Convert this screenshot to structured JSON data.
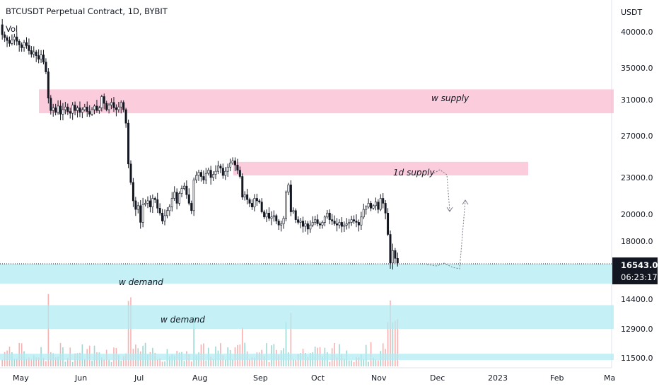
{
  "chart_data": {
    "type": "candlestick",
    "title": "BTCUSDT Perpetual Contract, 1D, BYBIT",
    "indicator_label": "Vol",
    "currency": "USDT",
    "price_ticks": [
      40000,
      35000,
      31000,
      27000,
      23000,
      20000,
      18000,
      14400,
      12900,
      11500
    ],
    "price_tick_labels": [
      "40000.0",
      "35000.0",
      "31000.0",
      "27000.0",
      "23000.0",
      "20000.0",
      "18000.0",
      "14400.0",
      "12900.0",
      "11500.0"
    ],
    "current_price": "16543.0",
    "countdown": "06:23:17",
    "x_labels": [
      "May",
      "Jun",
      "Jul",
      "Aug",
      "Sep",
      "Oct",
      "Nov",
      "Dec",
      "2023",
      "Feb",
      "Ma"
    ],
    "zones": [
      {
        "label": "w supply",
        "from": 29500,
        "to": 32300,
        "color": "#f8bbd0"
      },
      {
        "label": "1d supply",
        "from": 23200,
        "to": 24500,
        "color": "#f8bbd0"
      },
      {
        "label": "w demand",
        "from": 15350,
        "to": 16550,
        "color": "#b2ebf2"
      },
      {
        "label": "w demand",
        "from": 12900,
        "to": 14100,
        "color": "#b2ebf2"
      },
      {
        "label": "",
        "from": 11400,
        "to": 11700,
        "color": "#b2ebf2"
      }
    ],
    "closes": [
      39600,
      39200,
      38800,
      38400,
      38900,
      39300,
      38700,
      38200,
      37800,
      38500,
      38100,
      37400,
      36900,
      37200,
      36700,
      36200,
      36800,
      35800,
      34500,
      31200,
      29800,
      30100,
      29600,
      30300,
      29400,
      29900,
      30200,
      29700,
      29500,
      30400,
      29800,
      30100,
      29600,
      29900,
      30200,
      29700,
      29400,
      29900,
      30300,
      29800,
      30100,
      31400,
      30600,
      29900,
      30400,
      30700,
      30100,
      29900,
      30200,
      30700,
      29900,
      28400,
      24300,
      22600,
      21100,
      20400,
      20700,
      19400,
      20800,
      20900,
      21100,
      20600,
      21300,
      21200,
      20500,
      20100,
      19500,
      19900,
      20300,
      20600,
      21300,
      21800,
      20900,
      21700,
      22100,
      22300,
      21600,
      20900,
      20300,
      22800,
      23200,
      23500,
      23100,
      22800,
      23400,
      23700,
      23000,
      23300,
      23600,
      24100,
      23900,
      23200,
      23600,
      24000,
      24400,
      24600,
      24200,
      23700,
      23100,
      21400,
      21600,
      21200,
      20900,
      20600,
      21300,
      21100,
      21000,
      20200,
      19800,
      20100,
      19700,
      19800,
      19900,
      19500,
      19200,
      19300,
      19700,
      21800,
      22400,
      20200,
      20300,
      19600,
      19400,
      19500,
      19100,
      19300,
      18900,
      19200,
      19400,
      19600,
      19300,
      19200,
      19400,
      19800,
      20100,
      19600,
      19500,
      19300,
      19200,
      19400,
      19100,
      19200,
      19300,
      19400,
      19600,
      19500,
      19400,
      19200,
      19800,
      20400,
      20600,
      20900,
      20500,
      20700,
      21000,
      20400,
      21300,
      20900,
      20100,
      18500,
      16600,
      17400,
      16900,
      16600
    ]
  },
  "legend": {
    "zone_labels": [
      "w supply",
      "1d supply",
      "w demand",
      "w demand"
    ]
  }
}
